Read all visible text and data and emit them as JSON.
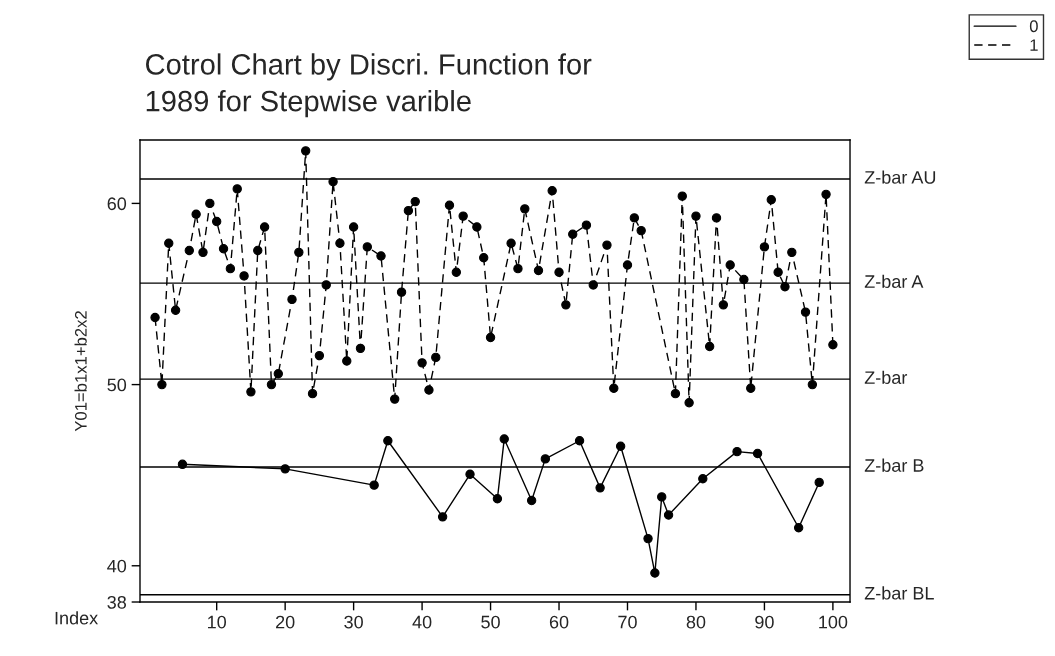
{
  "chart_data": {
    "type": "line",
    "title": "Cotrol Chart by Discri. Function for\n1989 for Stepwise varible",
    "xlabel": "Index",
    "ylabel": "Y01=b1x1+b2x2",
    "xlim": [
      -1.2,
      102.5
    ],
    "xticks": [
      10,
      20,
      30,
      40,
      50,
      60,
      70,
      80,
      90,
      100
    ],
    "ylim": [
      38,
      63.5
    ],
    "yticks": [
      38,
      40,
      50,
      60
    ],
    "marker": "circle",
    "grid": false,
    "legend": "top right",
    "series": [
      {
        "name": "0",
        "color": "#000000",
        "line_style": "solid",
        "x": [
          5,
          20,
          33,
          35,
          43,
          47,
          51,
          52,
          56,
          58,
          63,
          66,
          69,
          73,
          74,
          75,
          76,
          81,
          86,
          89,
          95,
          98
        ],
        "values": [
          45.6,
          45.35,
          44.45,
          46.9,
          42.7,
          45.05,
          43.7,
          47.0,
          43.6,
          45.9,
          46.9,
          44.3,
          46.6,
          41.5,
          39.6,
          43.8,
          42.8,
          44.8,
          46.3,
          46.2,
          42.1,
          44.6
        ]
      },
      {
        "name": "1",
        "color": "#000000",
        "line_style": "dashed",
        "x": [
          1,
          2,
          3,
          4,
          6,
          7,
          8,
          9,
          10,
          11,
          12,
          13,
          14,
          15,
          16,
          17,
          18,
          19,
          21,
          22,
          23,
          24,
          25,
          26,
          27,
          28,
          29,
          30,
          31,
          32,
          34,
          36,
          37,
          38,
          39,
          40,
          41,
          42,
          44,
          45,
          46,
          48,
          49,
          50,
          53,
          54,
          55,
          57,
          59,
          60,
          61,
          62,
          64,
          65,
          67,
          68,
          70,
          71,
          72,
          77,
          78,
          79,
          80,
          82,
          83,
          84,
          85,
          87,
          88,
          90,
          91,
          92,
          93,
          94,
          96,
          97,
          99,
          100
        ],
        "values": [
          53.7,
          50.0,
          57.8,
          54.1,
          57.4,
          59.4,
          57.3,
          60.0,
          59.0,
          57.5,
          56.4,
          60.8,
          56.0,
          49.6,
          57.4,
          58.7,
          50.0,
          50.6,
          54.7,
          57.3,
          62.9,
          49.5,
          51.6,
          55.5,
          61.2,
          57.8,
          51.3,
          58.7,
          52.0,
          57.6,
          57.1,
          49.2,
          55.1,
          59.6,
          60.1,
          51.2,
          49.7,
          51.5,
          59.9,
          56.2,
          59.3,
          58.7,
          57.0,
          52.6,
          57.8,
          56.4,
          59.7,
          56.3,
          60.7,
          56.2,
          54.4,
          58.3,
          58.8,
          55.5,
          57.7,
          49.8,
          56.6,
          59.2,
          58.5,
          49.5,
          60.4,
          49.0,
          59.3,
          52.1,
          59.2,
          54.4,
          56.6,
          55.8,
          49.8,
          57.6,
          60.2,
          56.2,
          55.4,
          57.3,
          54.0,
          50.0,
          60.5,
          52.2
        ]
      }
    ],
    "ref_lines": [
      {
        "axis": "y",
        "value": 61.35,
        "label": "Z-bar AU",
        "color": "#000000"
      },
      {
        "axis": "y",
        "value": 55.6,
        "label": "Z-bar A",
        "color": "#000000"
      },
      {
        "axis": "y",
        "value": 50.3,
        "label": "Z-bar",
        "color": "#000000"
      },
      {
        "axis": "y",
        "value": 45.45,
        "label": "Z-bar B",
        "color": "#000000"
      },
      {
        "axis": "y",
        "value": 38.4,
        "label": "Z-bar BL",
        "color": "#000000"
      }
    ]
  }
}
